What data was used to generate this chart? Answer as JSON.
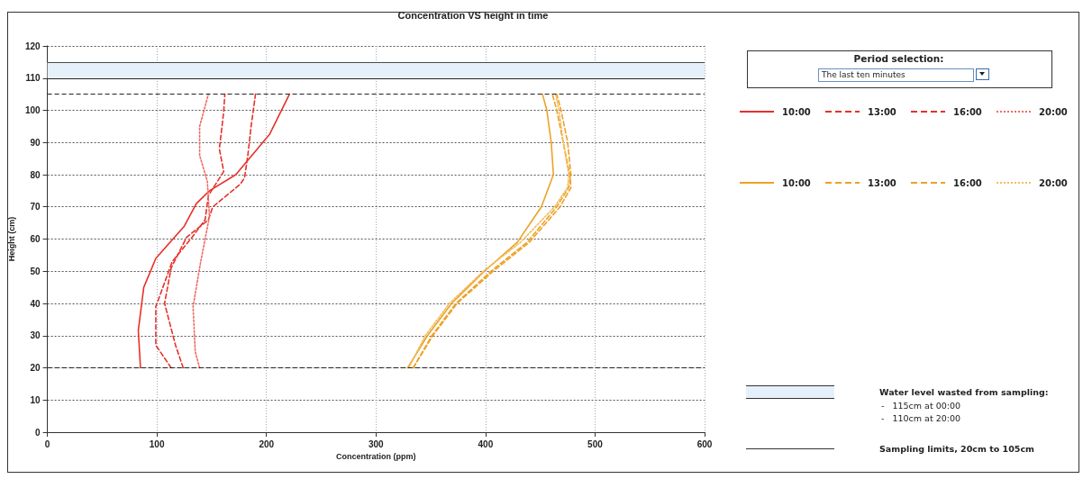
{
  "chart_data": {
    "type": "line",
    "title": "Concentration VS height in time",
    "xlabel": "Concentration (ppm)",
    "ylabel": "Height (cm)",
    "xlim": [
      0,
      600
    ],
    "xticks": [
      0,
      100,
      200,
      300,
      400,
      500,
      600
    ],
    "ylim": [
      0,
      120
    ],
    "yticks": [
      0,
      10,
      20,
      30,
      40,
      50,
      60,
      70,
      80,
      90,
      100,
      110,
      120
    ],
    "grid": true,
    "legend": "right",
    "marker": "none",
    "series": [
      {
        "name": "10:00",
        "color": "#e8302a",
        "line_style": "solid",
        "x": [
          85,
          83,
          88,
          99,
          125,
          136,
          148,
          172,
          203,
          221
        ],
        "values": [
          20,
          31.6,
          45,
          54,
          64,
          71,
          75,
          80,
          92.6,
          105
        ]
      },
      {
        "name": "13:00",
        "color": "#e8302a",
        "line_style": "dashed",
        "x": [
          124,
          117,
          107,
          113,
          127,
          147,
          151,
          176,
          180,
          183,
          186,
          190
        ],
        "values": [
          20,
          27,
          40,
          51,
          60.5,
          66,
          70,
          77,
          79,
          86,
          95,
          105
        ]
      },
      {
        "name": "16:00",
        "color": "#e8302a",
        "line_style": "dashed",
        "x": [
          113,
          99,
          99,
          114,
          132,
          144,
          147,
          161,
          157,
          161,
          162
        ],
        "values": [
          20,
          27,
          39,
          53,
          60.5,
          66,
          73.5,
          81,
          88,
          99.6,
          105
        ]
      },
      {
        "name": "20:00",
        "color": "#ef6b66",
        "line_style": "dotted",
        "x": [
          139,
          135,
          133,
          140,
          148,
          146,
          139,
          139,
          147
        ],
        "values": [
          20,
          25,
          39,
          53,
          67,
          78,
          86,
          95,
          105
        ]
      },
      {
        "name": "10:00",
        "color": "#eda126",
        "line_style": "solid",
        "x": [
          329,
          347,
          369,
          399,
          429,
          451,
          462,
          460,
          456,
          452
        ],
        "values": [
          20,
          30,
          40,
          50,
          59,
          70,
          80,
          90,
          100,
          105
        ]
      },
      {
        "name": "13:00",
        "color": "#eda126",
        "line_style": "dashed",
        "x": [
          334,
          352,
          374,
          407,
          440,
          468,
          478,
          477,
          471,
          465,
          461
        ],
        "values": [
          20,
          30,
          40,
          50,
          59,
          70,
          76,
          80,
          90,
          100,
          105
        ]
      },
      {
        "name": "16:00",
        "color": "#eda126",
        "line_style": "dashed",
        "x": [
          334,
          351,
          373,
          405,
          438,
          465,
          476,
          478,
          475,
          469,
          465
        ],
        "values": [
          20,
          30,
          40,
          50,
          59,
          70,
          76,
          80,
          90,
          100,
          105
        ]
      },
      {
        "name": "20:00",
        "color": "#f2bd5e",
        "line_style": "dotted",
        "x": [
          330,
          345,
          367,
          398,
          432,
          463,
          475,
          476,
          471,
          467,
          464
        ],
        "values": [
          20,
          30,
          40,
          50,
          59,
          70,
          76,
          80,
          90,
          100,
          105
        ]
      }
    ],
    "ref_lines": [
      {
        "axis": "y",
        "value": 115,
        "color": "#4a4a4a",
        "line_style": "solid"
      },
      {
        "axis": "y",
        "value": 110,
        "color": "#222222",
        "line_style": "solid"
      },
      {
        "axis": "y",
        "value": 105,
        "color": "#222222",
        "line_style": "dashed"
      },
      {
        "axis": "y",
        "value": 20,
        "color": "#222222",
        "line_style": "dashed"
      }
    ],
    "bands": [
      {
        "axis": "y",
        "from": 110,
        "to": 115,
        "color": "#e6f0fa"
      }
    ],
    "annotations": [
      "Period selection:",
      "The last ten minutes",
      "Water level wasted from sampling:",
      "-   115cm at 00:00",
      "-   110cm at 20:00",
      "Sampling limits, 20cm to 105cm"
    ]
  }
}
